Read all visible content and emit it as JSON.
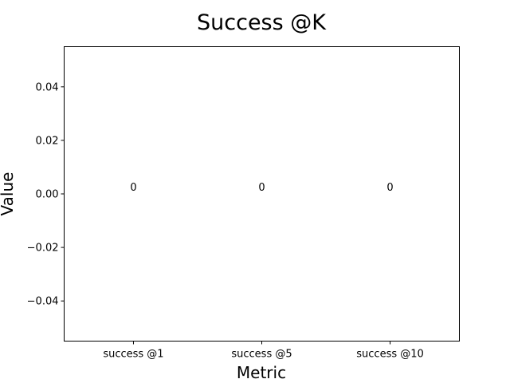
{
  "chart_data": {
    "type": "bar",
    "title": "Success @K",
    "xlabel": "Metric",
    "ylabel": "Value",
    "categories": [
      "success @1",
      "success @5",
      "success @10"
    ],
    "values": [
      0,
      0,
      0
    ],
    "data_labels": [
      "0",
      "0",
      "0"
    ],
    "ylim": [
      -0.055,
      0.055
    ],
    "yticks": [
      -0.04,
      -0.02,
      0.0,
      0.02,
      0.04
    ],
    "ytick_labels": [
      "−0.04",
      "−0.02",
      "0.00",
      "0.02",
      "0.04"
    ],
    "grid": false,
    "legend": "none",
    "bar_color": "#1f77b4"
  }
}
